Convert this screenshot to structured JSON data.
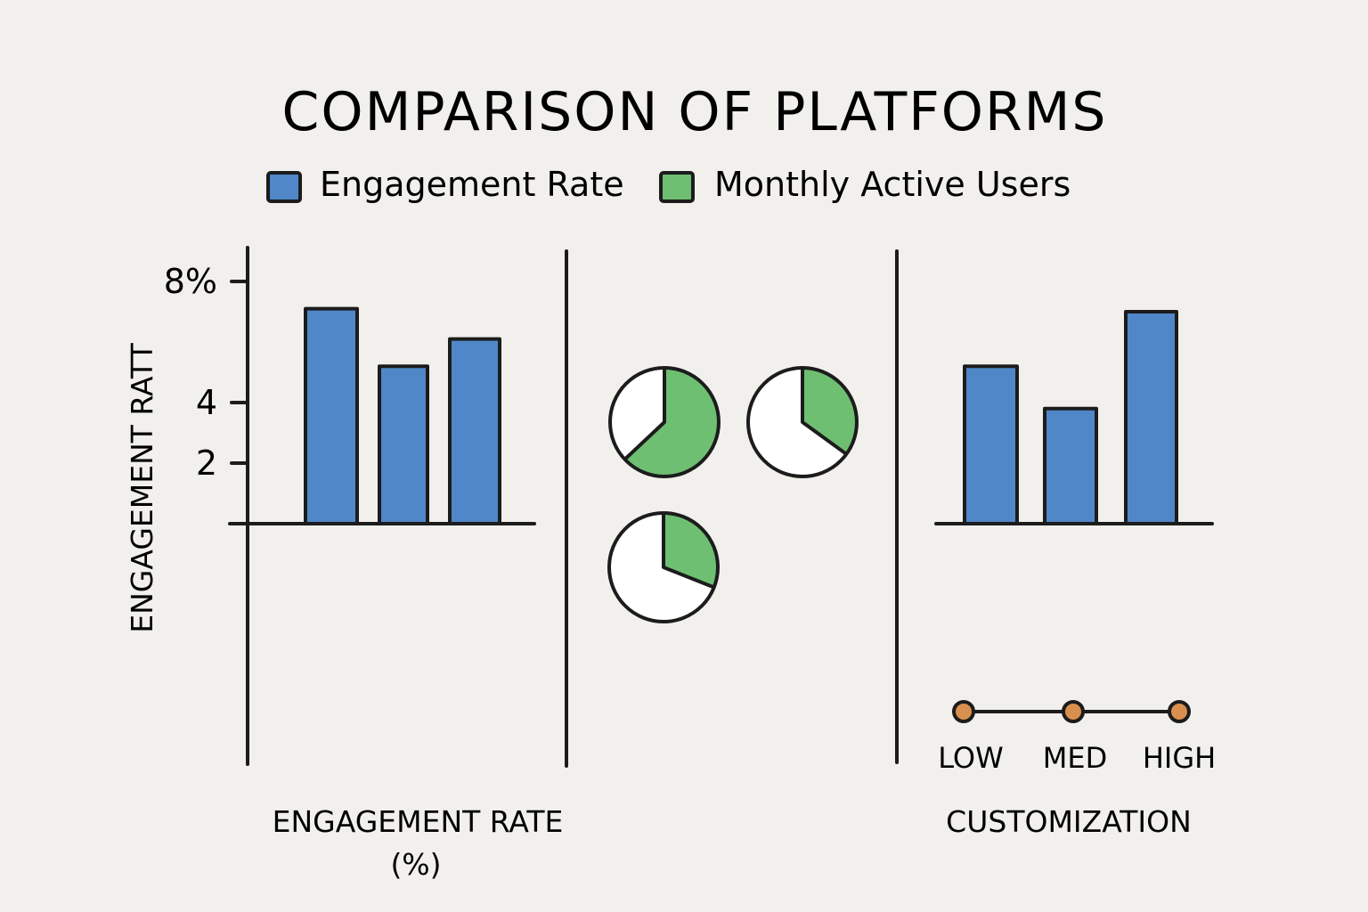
{
  "title": "COMPARISON OF PLATFORMS",
  "legend": [
    {
      "label": "Engagement Rate",
      "color": "#4f87c8"
    },
    {
      "label": "Monthly Active Users",
      "color": "#6ebf72"
    }
  ],
  "colors": {
    "bar": "#4f87c8",
    "pie": "#6ebf72",
    "marker": "#d9904e",
    "ink": "#1c1c1c",
    "background": "#f1f0ec"
  },
  "chart_data": [
    {
      "type": "bar",
      "title": "",
      "ylabel": "ENGAGEMENT RATT",
      "xlabel": "ENGAGEMENT RATE",
      "xlabel_unit": "(%)",
      "ylim": [
        0,
        8
      ],
      "yticks": [
        {
          "value": 2,
          "label": "2"
        },
        {
          "value": 4,
          "label": "4"
        },
        {
          "value": 8,
          "label": "8%"
        }
      ],
      "series": [
        {
          "values": [
            7.1,
            5.2,
            6.1
          ]
        }
      ]
    },
    {
      "type": "pie",
      "title": "",
      "pies": [
        {
          "fraction": 0.63
        },
        {
          "fraction": 0.35
        },
        {
          "fraction": 0.31
        }
      ]
    },
    {
      "type": "bar",
      "title": "",
      "xlabel": "CUSTOMIZATION",
      "series": [
        {
          "values": [
            5.2,
            3.8,
            7.0
          ]
        }
      ],
      "scale": {
        "labels": [
          "LOW",
          "MED",
          "HIGH"
        ]
      }
    }
  ]
}
